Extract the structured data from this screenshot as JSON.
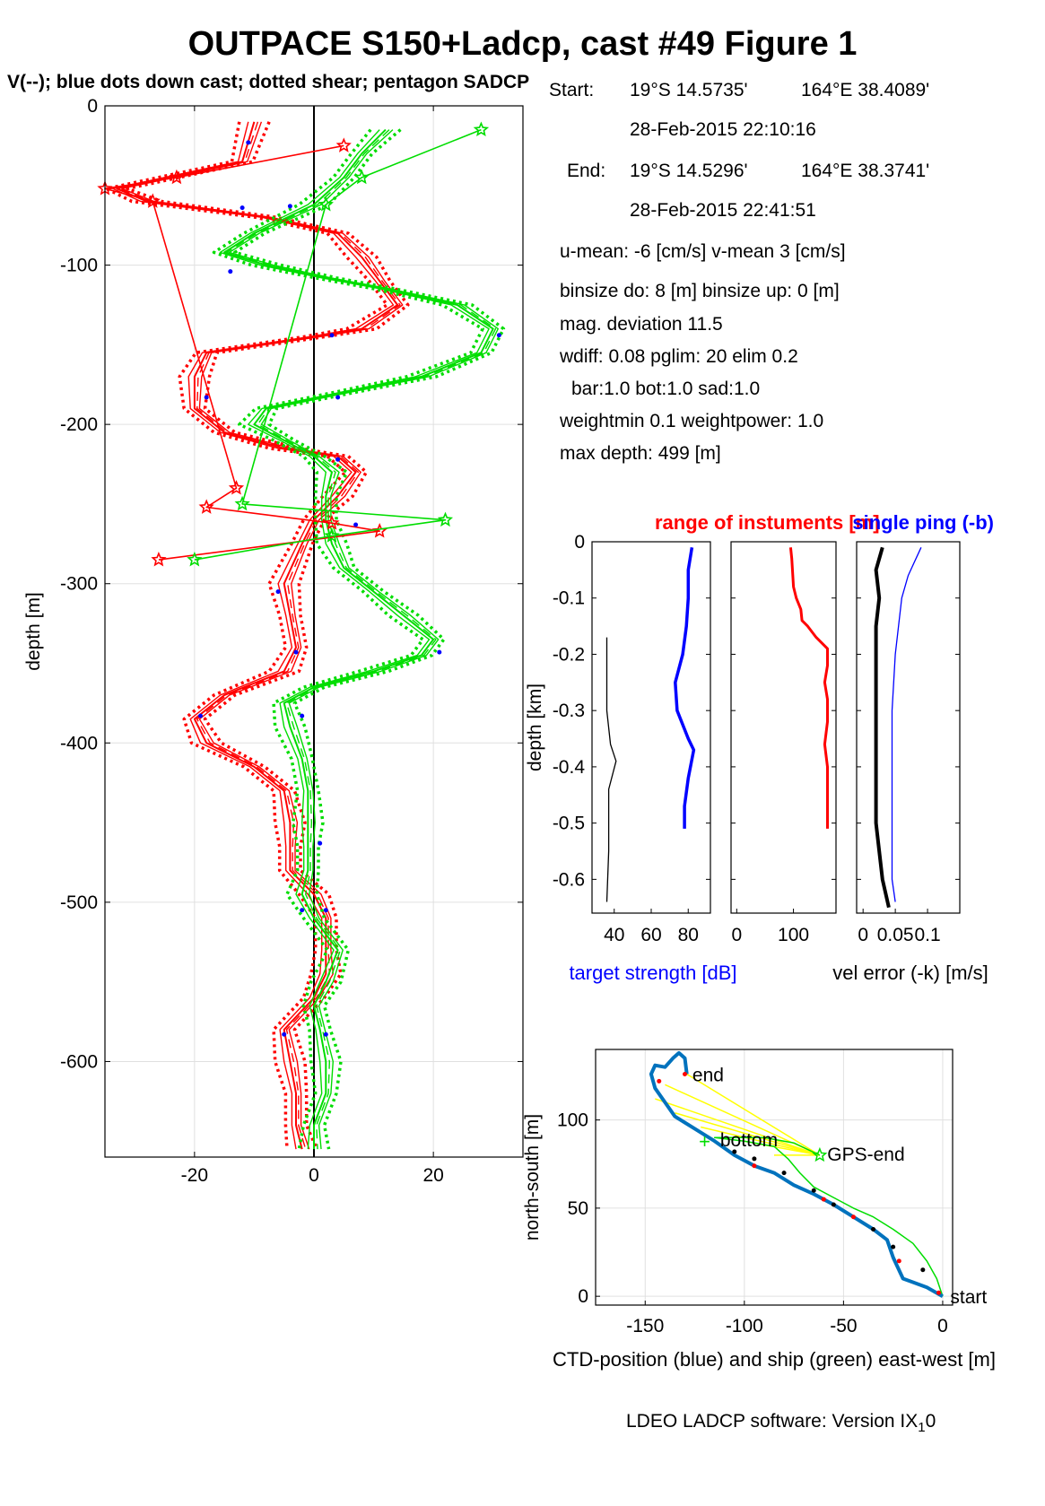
{
  "title": "OUTPACE S150+Ladcp, cast #49  Figure 1",
  "subtitle": "V(--); blue dots down cast; dotted shear; pentagon SADCP",
  "info": {
    "start_label": "Start:",
    "start_lat": "19°S 14.5735'",
    "start_lon": "164°E 38.4089'",
    "start_time": "28-Feb-2015 22:10:16",
    "end_label": "End:",
    "end_lat": "19°S 14.5296'",
    "end_lon": "164°E 38.3741'",
    "end_time": "28-Feb-2015 22:41:51",
    "means": "u-mean:  -6 [cm/s]     v-mean   3 [cm/s]",
    "binsize": "binsize do: 8 [m]  binsize up:  0 [m]",
    "magdev": "mag. deviation 11.5",
    "wdiff": "wdiff: 0.08  pglim: 20  elim 0.2",
    "bar": "bar:1.0 bot:1.0 sad:1.0",
    "weight": "weightmin 0.1  weightpower: 1.0",
    "maxdepth": "max depth: 499 [m]"
  },
  "footer": {
    "text": "LDEO LADCP software: Version IX",
    "sub": "1",
    "tail": "0"
  },
  "colors": {
    "u": "#ff0000",
    "v": "#00dd00",
    "downcast": "#0000ff",
    "ctd": "#0072bd",
    "ship": "#00dd00",
    "gps_line": "#ffff00",
    "bottom_track": "#000000"
  },
  "chart_data": [
    {
      "type": "line",
      "name": "velocity-profile",
      "ylabel": "depth [m]",
      "xlabel": "",
      "xlim": [
        -35,
        35
      ],
      "ylim": [
        -660,
        0
      ],
      "xticks": [
        -20,
        0,
        20
      ],
      "yticks": [
        0,
        -100,
        -200,
        -300,
        -400,
        -500,
        -600
      ],
      "grid": true,
      "series": [
        {
          "name": "u",
          "color": "#ff0000",
          "style": "solid",
          "points": [
            [
              -10,
              -10
            ],
            [
              -12,
              -35
            ],
            [
              -33,
              -52
            ],
            [
              -28,
              -60
            ],
            [
              -8,
              -70
            ],
            [
              4,
              -80
            ],
            [
              8,
              -95
            ],
            [
              11,
              -110
            ],
            [
              14,
              -125
            ],
            [
              8,
              -140
            ],
            [
              0,
              -145
            ],
            [
              -18,
              -155
            ],
            [
              -20,
              -170
            ],
            [
              -20,
              -190
            ],
            [
              -15,
              -205
            ],
            [
              -5,
              -215
            ],
            [
              4,
              -220
            ],
            [
              7,
              -230
            ],
            [
              4,
              -245
            ],
            [
              0,
              -260
            ],
            [
              -2,
              -275
            ],
            [
              -5,
              -300
            ],
            [
              -4,
              -320
            ],
            [
              -3,
              -340
            ],
            [
              -5,
              -355
            ],
            [
              -15,
              -370
            ],
            [
              -20,
              -385
            ],
            [
              -18,
              -400
            ],
            [
              -10,
              -415
            ],
            [
              -5,
              -430
            ],
            [
              -4,
              -450
            ],
            [
              -4,
              -465
            ],
            [
              -4,
              -480
            ],
            [
              0,
              -495
            ],
            [
              2,
              -510
            ],
            [
              2,
              -530
            ],
            [
              2,
              -545
            ],
            [
              0,
              -560
            ],
            [
              -5,
              -580
            ],
            [
              -4,
              -600
            ],
            [
              -3,
              -620
            ],
            [
              -3,
              -640
            ],
            [
              -2,
              -655
            ]
          ]
        },
        {
          "name": "v",
          "color": "#00dd00",
          "style": "solid",
          "points": [
            [
              12,
              -15
            ],
            [
              8,
              -30
            ],
            [
              5,
              -45
            ],
            [
              0,
              -62
            ],
            [
              -10,
              -80
            ],
            [
              -15,
              -92
            ],
            [
              -8,
              -100
            ],
            [
              2,
              -108
            ],
            [
              12,
              -115
            ],
            [
              24,
              -125
            ],
            [
              30,
              -140
            ],
            [
              28,
              -155
            ],
            [
              18,
              -170
            ],
            [
              5,
              -180
            ],
            [
              -8,
              -190
            ],
            [
              -10,
              -200
            ],
            [
              -5,
              -210
            ],
            [
              0,
              -220
            ],
            [
              3,
              -230
            ],
            [
              2,
              -245
            ],
            [
              2,
              -260
            ],
            [
              3,
              -275
            ],
            [
              5,
              -290
            ],
            [
              10,
              -305
            ],
            [
              15,
              -320
            ],
            [
              20,
              -335
            ],
            [
              18,
              -345
            ],
            [
              10,
              -355
            ],
            [
              0,
              -365
            ],
            [
              -5,
              -375
            ],
            [
              -4,
              -390
            ],
            [
              -2,
              -410
            ],
            [
              -1,
              -430
            ],
            [
              -1,
              -450
            ],
            [
              -1,
              -465
            ],
            [
              -1,
              -480
            ],
            [
              -2,
              -495
            ],
            [
              0,
              -510
            ],
            [
              4,
              -530
            ],
            [
              2,
              -550
            ],
            [
              0,
              -565
            ],
            [
              1,
              -580
            ],
            [
              2,
              -600
            ],
            [
              2,
              -620
            ],
            [
              0,
              -640
            ],
            [
              0,
              -655
            ]
          ]
        },
        {
          "name": "sadcp-u",
          "color": "#ff0000",
          "style": "star",
          "points": [
            [
              5,
              -25
            ],
            [
              -23,
              -45
            ],
            [
              -35,
              -52
            ],
            [
              -27,
              -60
            ],
            [
              -13,
              -240
            ],
            [
              -18,
              -252
            ],
            [
              3,
              -262
            ],
            [
              11,
              -267
            ],
            [
              -26,
              -285
            ]
          ]
        },
        {
          "name": "sadcp-v",
          "color": "#00dd00",
          "style": "star",
          "points": [
            [
              28,
              -15
            ],
            [
              8,
              -45
            ],
            [
              2,
              -62
            ],
            [
              -12,
              -250
            ],
            [
              22,
              -260
            ],
            [
              3,
              -270
            ],
            [
              -20,
              -285
            ]
          ]
        },
        {
          "name": "downcast",
          "color": "#0000ff",
          "style": "dot",
          "points": [
            [
              -11,
              -23
            ],
            [
              -12,
              -64
            ],
            [
              -4,
              -63
            ],
            [
              -14,
              -104
            ],
            [
              31,
              -144
            ],
            [
              3,
              -144
            ],
            [
              -18,
              -183
            ],
            [
              4,
              -183
            ],
            [
              4,
              -222
            ],
            [
              7,
              -263
            ],
            [
              -6,
              -305
            ],
            [
              -3,
              -343
            ],
            [
              21,
              -343
            ],
            [
              -19,
              -383
            ],
            [
              -2,
              -383
            ],
            [
              1,
              -463
            ],
            [
              2,
              -505
            ],
            [
              -2,
              -505
            ],
            [
              2,
              -583
            ],
            [
              -5,
              -583
            ]
          ]
        }
      ]
    },
    {
      "type": "line",
      "name": "target-strength",
      "title": "range of instuments [m]",
      "title_color": "#ff0000",
      "ylabel": "depth [km]",
      "xlabel": "target strength [dB]",
      "ylim": [
        -0.66,
        0
      ],
      "yticks": [
        0,
        -0.1,
        -0.2,
        -0.3,
        -0.4,
        -0.5,
        -0.6
      ],
      "xlim": [
        28,
        92
      ],
      "xticks": [
        40,
        60,
        80
      ],
      "series": [
        {
          "name": "target strength",
          "color": "#0000ff",
          "points": [
            [
              82,
              -0.01
            ],
            [
              80,
              -0.05
            ],
            [
              80,
              -0.1
            ],
            [
              79,
              -0.15
            ],
            [
              77,
              -0.2
            ],
            [
              73,
              -0.25
            ],
            [
              74,
              -0.3
            ],
            [
              80,
              -0.35
            ],
            [
              83,
              -0.37
            ],
            [
              80,
              -0.42
            ],
            [
              78,
              -0.47
            ],
            [
              78,
              -0.51
            ]
          ]
        },
        {
          "name": "profile",
          "color": "#000000",
          "points": [
            [
              36,
              -0.17
            ],
            [
              36,
              -0.3
            ],
            [
              38,
              -0.36
            ],
            [
              41,
              -0.39
            ],
            [
              37,
              -0.44
            ],
            [
              37,
              -0.55
            ],
            [
              36,
              -0.64
            ]
          ]
        }
      ]
    },
    {
      "type": "line",
      "name": "instrument-range",
      "ylim": [
        -0.66,
        0
      ],
      "xlim": [
        -10,
        175
      ],
      "xticks": [
        0,
        100
      ],
      "series": [
        {
          "name": "range",
          "color": "#ff0000",
          "points": [
            [
              95,
              -0.01
            ],
            [
              97,
              -0.03
            ],
            [
              100,
              -0.08
            ],
            [
              105,
              -0.1
            ],
            [
              113,
              -0.12
            ],
            [
              115,
              -0.14
            ],
            [
              125,
              -0.15
            ],
            [
              140,
              -0.17
            ],
            [
              160,
              -0.19
            ],
            [
              160,
              -0.22
            ],
            [
              155,
              -0.25
            ],
            [
              160,
              -0.28
            ],
            [
              160,
              -0.32
            ],
            [
              155,
              -0.36
            ],
            [
              160,
              -0.4
            ],
            [
              160,
              -0.51
            ]
          ]
        }
      ]
    },
    {
      "type": "line",
      "name": "velocity-error",
      "title": "single ping (-b)",
      "title_color": "#0000ff",
      "xlabel": "vel error (-k) [m/s]",
      "ylim": [
        -0.66,
        0
      ],
      "xlim": [
        -0.01,
        0.15
      ],
      "xticks": [
        0,
        0.05,
        0.1
      ],
      "xticklabels": [
        "0",
        "0.05",
        "0.1"
      ],
      "series": [
        {
          "name": "vel error",
          "color": "#000000",
          "points": [
            [
              0.03,
              -0.01
            ],
            [
              0.02,
              -0.05
            ],
            [
              0.025,
              -0.1
            ],
            [
              0.02,
              -0.15
            ],
            [
              0.02,
              -0.2
            ],
            [
              0.02,
              -0.3
            ],
            [
              0.02,
              -0.4
            ],
            [
              0.02,
              -0.5
            ],
            [
              0.03,
              -0.6
            ],
            [
              0.04,
              -0.65
            ]
          ]
        },
        {
          "name": "single ping",
          "color": "#0000ff",
          "points": [
            [
              0.09,
              -0.01
            ],
            [
              0.07,
              -0.06
            ],
            [
              0.06,
              -0.1
            ],
            [
              0.055,
              -0.15
            ],
            [
              0.05,
              -0.2
            ],
            [
              0.045,
              -0.3
            ],
            [
              0.045,
              -0.4
            ],
            [
              0.045,
              -0.5
            ],
            [
              0.045,
              -0.6
            ],
            [
              0.05,
              -0.64
            ]
          ]
        }
      ]
    },
    {
      "type": "line",
      "name": "position",
      "xlabel": "CTD-position (blue) and ship (green) east-west [m]",
      "ylabel": "north-south [m]",
      "xlim": [
        -175,
        5
      ],
      "ylim": [
        -5,
        140
      ],
      "xticks": [
        -150,
        -100,
        -50,
        0
      ],
      "yticks": [
        0,
        50,
        100
      ],
      "annotations": [
        {
          "text": "end",
          "x": -128,
          "y": 126
        },
        {
          "text": "bottom",
          "x": -114,
          "y": 89
        },
        {
          "text": "GPS-end",
          "x": -60,
          "y": 81
        },
        {
          "text": "start",
          "x": 2,
          "y": 0
        }
      ],
      "series": [
        {
          "name": "CTD-position",
          "color": "#0072bd",
          "points": [
            [
              0,
              0
            ],
            [
              -8,
              5
            ],
            [
              -20,
              10
            ],
            [
              -25,
              22
            ],
            [
              -28,
              32
            ],
            [
              -35,
              38
            ],
            [
              -45,
              45
            ],
            [
              -55,
              52
            ],
            [
              -65,
              58
            ],
            [
              -75,
              63
            ],
            [
              -85,
              70
            ],
            [
              -95,
              74
            ],
            [
              -105,
              80
            ],
            [
              -115,
              88
            ],
            [
              -125,
              95
            ],
            [
              -135,
              102
            ],
            [
              -140,
              110
            ],
            [
              -145,
              118
            ],
            [
              -147,
              126
            ],
            [
              -145,
              131
            ],
            [
              -140,
              130
            ],
            [
              -136,
              135
            ],
            [
              -133,
              138
            ],
            [
              -130,
              135
            ],
            [
              -129,
              126
            ]
          ]
        },
        {
          "name": "ship",
          "color": "#00dd00",
          "points": [
            [
              0,
              0
            ],
            [
              -3,
              10
            ],
            [
              -8,
              20
            ],
            [
              -15,
              30
            ],
            [
              -25,
              38
            ],
            [
              -35,
              45
            ],
            [
              -45,
              50
            ],
            [
              -55,
              56
            ],
            [
              -65,
              62
            ],
            [
              -72,
              70
            ],
            [
              -78,
              78
            ],
            [
              -85,
              85
            ],
            [
              -100,
              88
            ],
            [
              -115,
              90
            ],
            [
              -90,
              90
            ],
            [
              -75,
              87
            ],
            [
              -62,
              80
            ]
          ]
        }
      ]
    }
  ]
}
